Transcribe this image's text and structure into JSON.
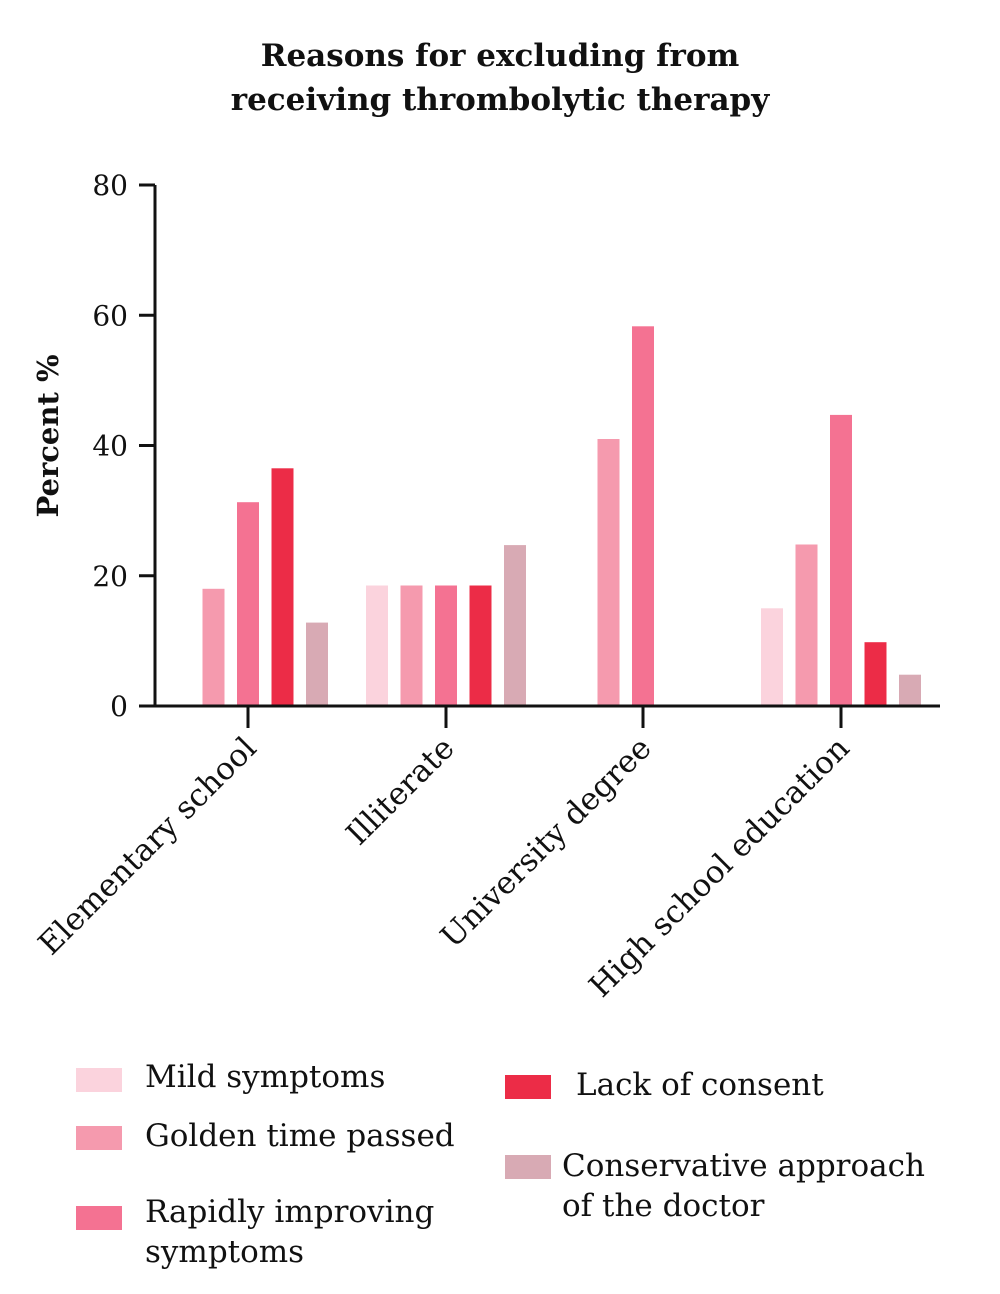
{
  "chart_data": {
    "type": "bar",
    "title": "Reasons for excluding from\nreceiving thrombolytic therapy",
    "title_lines": [
      "Reasons for excluding from",
      "receiving thrombolytic therapy"
    ],
    "xlabel": "",
    "ylabel": "Percent %",
    "ylim": [
      0,
      80
    ],
    "yticks": [
      "0",
      "20",
      "40",
      "60",
      "80"
    ],
    "grid": false,
    "categories": [
      "Elementary school",
      "Illiterate",
      "University degree",
      "High school education"
    ],
    "series": [
      {
        "name": "Mild symptoms",
        "color": "#fbd3dd",
        "values": [
          0,
          18.5,
          0,
          15
        ]
      },
      {
        "name": "Golden time passed",
        "color": "#f59aae",
        "values": [
          18,
          18.5,
          41,
          24.8
        ]
      },
      {
        "name": "Rapidly improving symptoms",
        "color": "#f47292",
        "values": [
          31.3,
          18.5,
          58.3,
          44.7
        ]
      },
      {
        "name": "Lack of consent",
        "color": "#ec2c47",
        "values": [
          36.5,
          18.5,
          0,
          9.8
        ]
      },
      {
        "name": "Conservative approach of the doctor",
        "color": "#d8aab4",
        "values": [
          12.8,
          24.7,
          0,
          4.8
        ]
      }
    ],
    "legend": {
      "placement": "bottom",
      "entries": [
        {
          "label": "Mild symptoms"
        },
        {
          "label": "Golden time passed"
        },
        {
          "label": "Rapidly improving\nsymptoms"
        },
        {
          "label": "Lack of consent"
        },
        {
          "label": "Conservative approach\nof the doctor"
        }
      ]
    }
  }
}
